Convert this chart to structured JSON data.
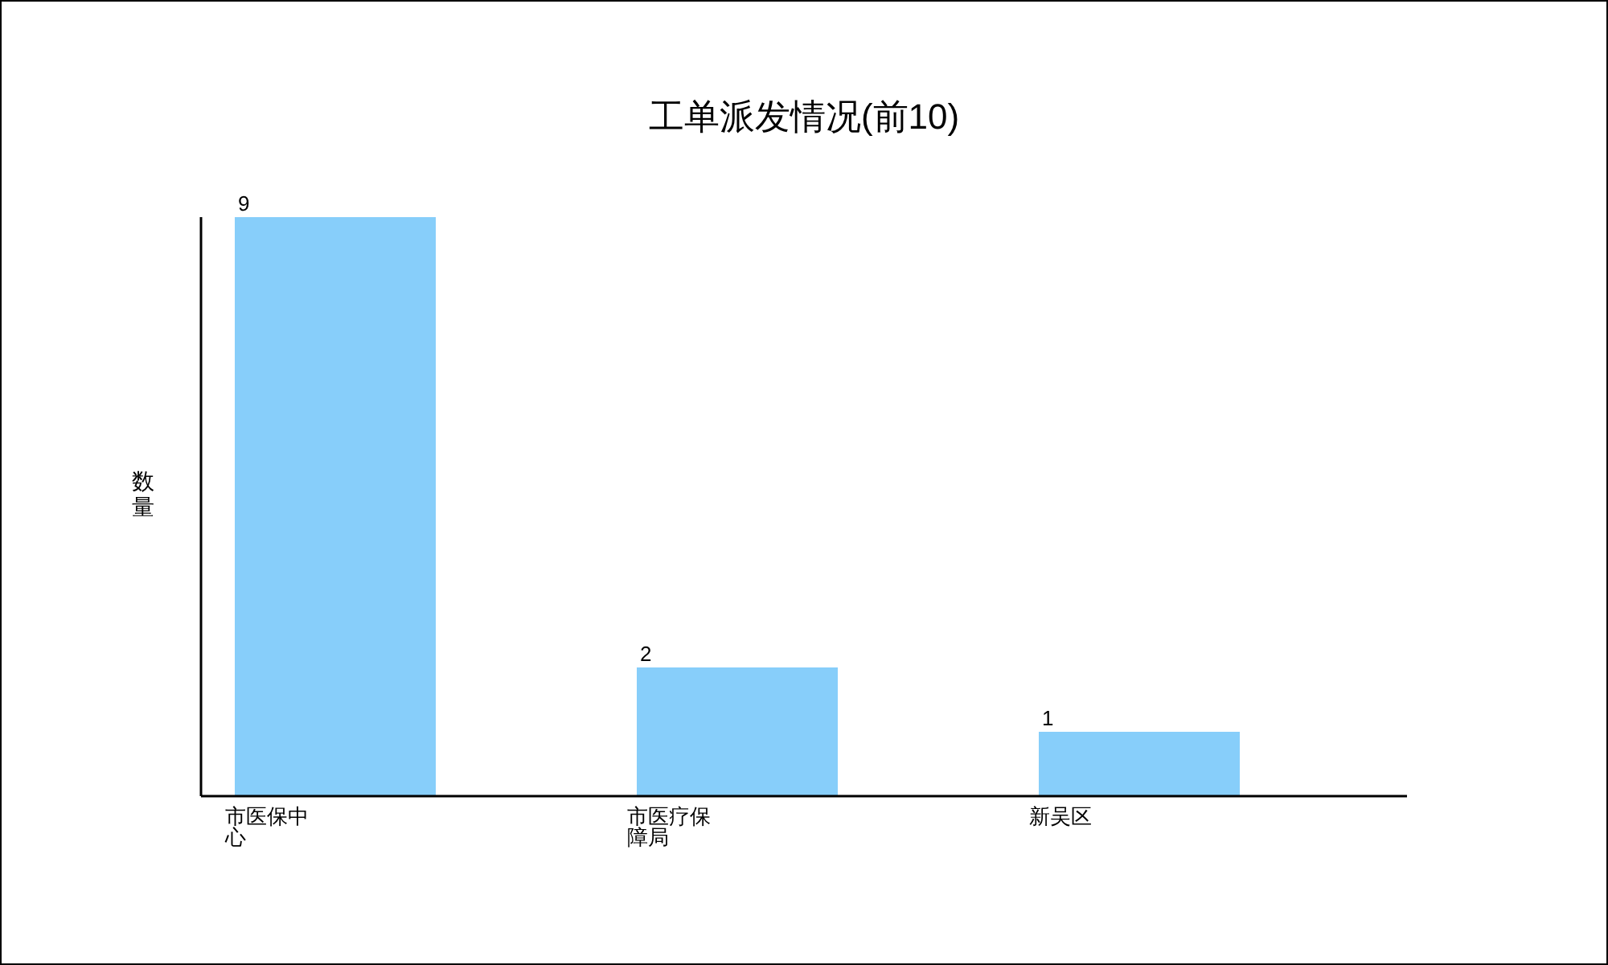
{
  "chart_data": {
    "type": "bar",
    "title": "工单派发情况(前10)",
    "ylabel": "数量",
    "categories": [
      "市医保中心",
      "市医疗保障局",
      "新吴区"
    ],
    "values": [
      9,
      2,
      1
    ],
    "color": "#87cefa",
    "data_labels": true
  }
}
